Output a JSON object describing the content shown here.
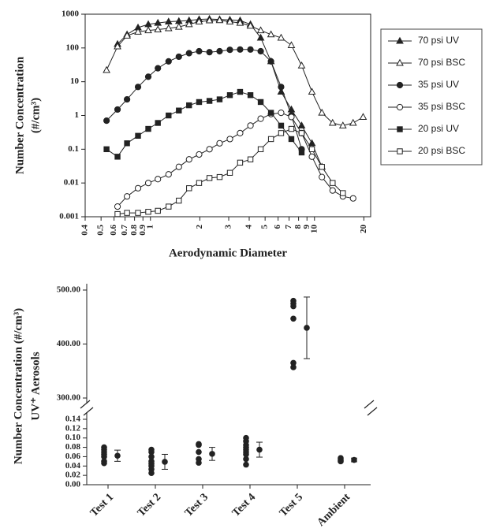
{
  "chart_data": [
    {
      "type": "line",
      "xscale": "log",
      "yscale": "log",
      "grid": false,
      "legend": "right",
      "xlabel": "Aerodynamic Diameter",
      "ylabel": [
        "Number Concentration",
        "(#/cm³)"
      ],
      "xlim": [
        0.4,
        22
      ],
      "ylim": [
        0.001,
        1000
      ],
      "xticks": [
        0.4,
        0.5,
        0.6,
        0.7,
        0.8,
        0.9,
        1,
        2,
        3,
        4,
        5,
        6,
        7,
        8,
        9,
        10,
        20
      ],
      "yticks": [
        0.001,
        0.01,
        0.1,
        1,
        10,
        100,
        1000
      ],
      "x": [
        0.54,
        0.63,
        0.72,
        0.84,
        0.97,
        1.11,
        1.29,
        1.49,
        1.72,
        1.98,
        2.29,
        2.64,
        3.05,
        3.52,
        4.07,
        4.7,
        5.43,
        6.26,
        7.23,
        8.35,
        9.65,
        11.1,
        12.9,
        14.9,
        17.2,
        19.8
      ],
      "series": [
        {
          "name": "70 psi UV",
          "color": "#222",
          "marker": "triangle",
          "filled": true,
          "values": [
            null,
            130,
            250,
            400,
            500,
            550,
            600,
            620,
            650,
            700,
            720,
            700,
            680,
            650,
            500,
            200,
            40,
            5,
            1.5,
            0.5,
            0.15,
            0.03,
            null,
            null,
            null,
            null
          ]
        },
        {
          "name": "70 psi BSC",
          "color": "#222",
          "marker": "triangle",
          "filled": false,
          "values": [
            22,
            110,
            230,
            300,
            330,
            350,
            380,
            420,
            500,
            600,
            650,
            660,
            600,
            550,
            450,
            330,
            250,
            200,
            120,
            30,
            5,
            1.2,
            0.6,
            0.5,
            0.6,
            0.9
          ]
        },
        {
          "name": "35 psi UV",
          "color": "#222",
          "marker": "circle",
          "filled": true,
          "values": [
            0.7,
            1.5,
            3,
            7,
            14,
            25,
            40,
            55,
            70,
            80,
            75,
            80,
            88,
            90,
            90,
            80,
            40,
            7,
            1,
            0.1,
            null,
            null,
            null,
            null,
            null,
            null
          ]
        },
        {
          "name": "35 psi BSC",
          "color": "#222",
          "marker": "circle",
          "filled": false,
          "values": [
            null,
            0.002,
            0.004,
            0.007,
            0.01,
            0.013,
            0.018,
            0.03,
            0.05,
            0.07,
            0.1,
            0.15,
            0.2,
            0.3,
            0.5,
            0.8,
            1.1,
            1.2,
            0.9,
            0.3,
            0.06,
            0.015,
            0.006,
            0.004,
            0.0035,
            null
          ]
        },
        {
          "name": "20 psi UV",
          "color": "#222",
          "marker": "square",
          "filled": true,
          "values": [
            0.1,
            0.06,
            0.15,
            0.25,
            0.4,
            0.6,
            1,
            1.4,
            2,
            2.5,
            2.7,
            3,
            4,
            5,
            4,
            2.5,
            1.2,
            0.5,
            0.2,
            0.08,
            null,
            null,
            null,
            null,
            null,
            null
          ]
        },
        {
          "name": "20 psi BSC",
          "color": "#222",
          "marker": "square",
          "filled": false,
          "values": [
            null,
            0.0012,
            0.0013,
            0.0013,
            0.0014,
            0.0015,
            0.002,
            0.003,
            0.007,
            0.01,
            0.014,
            0.015,
            0.02,
            0.04,
            0.05,
            0.1,
            0.2,
            0.3,
            0.4,
            0.3,
            0.1,
            0.03,
            0.01,
            0.005,
            null,
            null
          ]
        }
      ]
    },
    {
      "type": "strip",
      "color": "#222",
      "ylabel": [
        "Number Concentration (#/cm³)",
        "UV⁺ Aerosols"
      ],
      "categories": [
        "Test 1",
        "Test 2",
        "Test 3",
        "Test 4",
        "Test 5",
        "Ambient"
      ],
      "ylim": [
        0,
        0.14
      ],
      "yticks": [
        {
          "value": 0,
          "label": "0.00"
        },
        {
          "value": 0.02,
          "label": "0.02"
        },
        {
          "value": 0.04,
          "label": "0.04"
        },
        {
          "value": 0.06,
          "label": "0.06"
        },
        {
          "value": 0.08,
          "label": "0.08"
        },
        {
          "value": 0.1,
          "label": "0.10"
        },
        {
          "value": 0.12,
          "label": "0.12"
        },
        {
          "value": 0.14,
          "label": "0.14"
        }
      ],
      "ylim_upper": [
        300,
        500
      ],
      "yticks_upper": [
        {
          "value": 300,
          "label": "300.00"
        },
        {
          "value": 400,
          "label": "400.00"
        },
        {
          "value": 500,
          "label": "500.00"
        }
      ],
      "points": [
        [
          0.08,
          0.075,
          0.07,
          0.065,
          0.06,
          0.05,
          0.046
        ],
        [
          0.075,
          0.07,
          0.06,
          0.05,
          0.045,
          0.04,
          0.033,
          0.025
        ],
        [
          0.087,
          0.085,
          0.07,
          0.055,
          0.047
        ],
        [
          0.1,
          0.093,
          0.085,
          0.08,
          0.075,
          0.07,
          0.065,
          0.055,
          0.043
        ],
        [
          480,
          475,
          470,
          447,
          365,
          357
        ],
        [
          0.057,
          0.053,
          0.05
        ]
      ],
      "means": [
        0.062,
        0.049,
        0.066,
        0.075,
        430,
        0.053
      ],
      "errors": [
        0.012,
        0.016,
        0.014,
        0.016,
        57,
        0.004
      ]
    }
  ]
}
